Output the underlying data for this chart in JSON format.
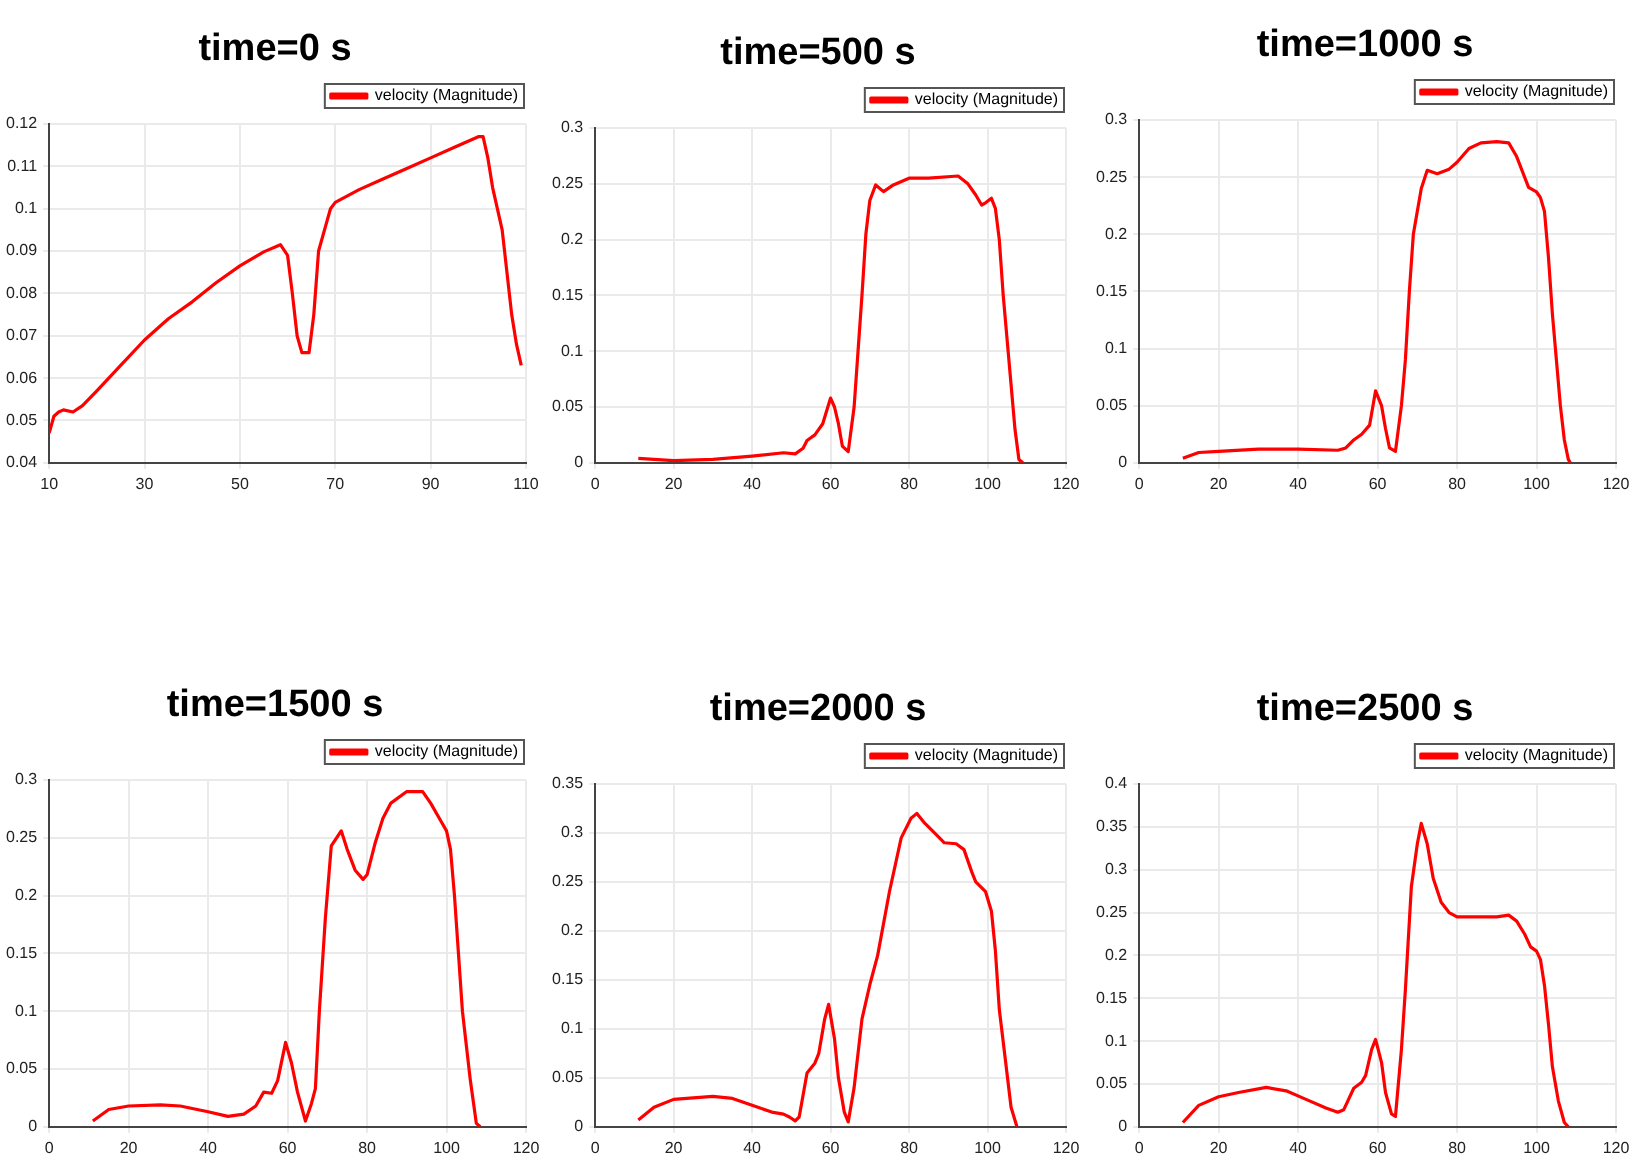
{
  "chart_data": [
    {
      "type": "line",
      "title": "time=0 s",
      "xlim": [
        10,
        110
      ],
      "xticks": [
        10,
        30,
        50,
        70,
        90,
        110
      ],
      "ylim": [
        0.04,
        0.12
      ],
      "yticks": [
        0.04,
        0.05,
        0.06,
        0.07,
        0.08,
        0.09,
        0.1,
        0.11,
        0.12
      ],
      "grid": true,
      "legend": "top right",
      "x": [
        10,
        11,
        12,
        13,
        15,
        17,
        20,
        25,
        30,
        35,
        40,
        45,
        50,
        55,
        58.5,
        60,
        61,
        62,
        63,
        64.5,
        65.5,
        66.5,
        68,
        69,
        70,
        75,
        80,
        85,
        90,
        95,
        100,
        101,
        102,
        103,
        105,
        107,
        108,
        109
      ],
      "series": [
        {
          "name": "velocity (Magnitude)",
          "color": "#ff0000",
          "values": [
            0.047,
            0.051,
            0.052,
            0.0525,
            0.052,
            0.0535,
            0.057,
            0.063,
            0.069,
            0.074,
            0.078,
            0.0825,
            0.0865,
            0.0898,
            0.0915,
            0.089,
            0.08,
            0.07,
            0.066,
            0.066,
            0.075,
            0.09,
            0.096,
            0.1,
            0.1015,
            0.1045,
            0.107,
            0.1095,
            0.112,
            0.1145,
            0.117,
            0.117,
            0.112,
            0.105,
            0.095,
            0.075,
            0.068,
            0.063
          ]
        }
      ]
    },
    {
      "type": "line",
      "title": "time=500 s",
      "xlim": [
        0,
        120
      ],
      "xticks": [
        0,
        20,
        40,
        60,
        80,
        100,
        120
      ],
      "ylim": [
        0,
        0.3
      ],
      "yticks": [
        0,
        0.05,
        0.1,
        0.15,
        0.2,
        0.25,
        0.3
      ],
      "grid": true,
      "legend": "top right",
      "x": [
        11,
        15,
        20,
        30,
        40,
        48,
        51,
        53,
        54,
        56,
        58,
        60,
        61,
        62,
        63,
        64.5,
        66,
        67,
        68,
        69,
        70,
        71.5,
        73.5,
        76,
        80,
        85,
        92.5,
        95,
        97,
        98.5,
        99.5,
        101,
        102,
        103,
        104,
        106,
        107,
        108,
        109
      ],
      "series": [
        {
          "name": "velocity (Magnitude)",
          "color": "#ff0000",
          "values": [
            0.004,
            0.003,
            0.002,
            0.003,
            0.006,
            0.009,
            0.008,
            0.013,
            0.02,
            0.025,
            0.035,
            0.058,
            0.05,
            0.035,
            0.015,
            0.01,
            0.05,
            0.1,
            0.15,
            0.205,
            0.235,
            0.249,
            0.243,
            0.249,
            0.255,
            0.255,
            0.257,
            0.25,
            0.24,
            0.231,
            0.233,
            0.237,
            0.228,
            0.2,
            0.15,
            0.07,
            0.03,
            0.003,
            0
          ]
        }
      ]
    },
    {
      "type": "line",
      "title": "time=1000 s",
      "xlim": [
        0,
        120
      ],
      "xticks": [
        0,
        20,
        40,
        60,
        80,
        100,
        120
      ],
      "ylim": [
        0,
        0.3
      ],
      "yticks": [
        0,
        0.05,
        0.1,
        0.15,
        0.2,
        0.25,
        0.3
      ],
      "grid": true,
      "legend": "top right",
      "x": [
        11,
        15,
        20,
        30,
        40,
        50,
        52,
        54,
        56,
        58,
        59.5,
        61,
        62,
        63,
        64.5,
        66,
        67,
        68,
        69,
        71,
        72.5,
        75,
        78,
        80,
        83,
        86,
        90,
        93,
        95,
        97,
        98,
        100,
        101,
        102,
        103,
        104,
        105,
        106,
        107,
        108,
        108.5
      ],
      "series": [
        {
          "name": "velocity (Magnitude)",
          "color": "#ff0000",
          "values": [
            0.004,
            0.009,
            0.01,
            0.012,
            0.012,
            0.011,
            0.013,
            0.02,
            0.025,
            0.033,
            0.063,
            0.05,
            0.03,
            0.013,
            0.01,
            0.05,
            0.09,
            0.15,
            0.2,
            0.24,
            0.256,
            0.253,
            0.257,
            0.263,
            0.275,
            0.28,
            0.281,
            0.28,
            0.268,
            0.25,
            0.241,
            0.237,
            0.232,
            0.22,
            0.18,
            0.13,
            0.09,
            0.05,
            0.02,
            0.003,
            0
          ]
        }
      ]
    },
    {
      "type": "line",
      "title": "time=1500 s",
      "xlim": [
        0,
        120
      ],
      "xticks": [
        0,
        20,
        40,
        60,
        80,
        100,
        120
      ],
      "ylim": [
        0,
        0.3
      ],
      "yticks": [
        0,
        0.05,
        0.1,
        0.15,
        0.2,
        0.25,
        0.3
      ],
      "grid": true,
      "legend": "top right",
      "x": [
        11,
        15,
        20,
        28,
        33,
        40,
        45,
        49,
        52,
        54,
        56,
        57.5,
        59.5,
        61,
        62.5,
        64.5,
        66,
        67,
        68,
        69.5,
        71,
        73.5,
        75,
        77,
        79,
        80,
        82,
        84,
        86,
        90,
        94,
        96,
        98,
        100,
        101,
        102,
        103,
        104,
        106,
        107.5,
        108.5
      ],
      "series": [
        {
          "name": "velocity (Magnitude)",
          "color": "#ff0000",
          "values": [
            0.005,
            0.015,
            0.018,
            0.019,
            0.018,
            0.013,
            0.009,
            0.011,
            0.018,
            0.03,
            0.029,
            0.04,
            0.073,
            0.055,
            0.03,
            0.005,
            0.02,
            0.033,
            0.1,
            0.18,
            0.243,
            0.256,
            0.24,
            0.222,
            0.214,
            0.218,
            0.245,
            0.267,
            0.28,
            0.29,
            0.29,
            0.28,
            0.268,
            0.256,
            0.24,
            0.2,
            0.15,
            0.1,
            0.04,
            0.003,
            0
          ]
        }
      ]
    },
    {
      "type": "line",
      "title": "time=2000 s",
      "xlim": [
        0,
        120
      ],
      "xticks": [
        0,
        20,
        40,
        60,
        80,
        100,
        120
      ],
      "ylim": [
        0,
        0.35
      ],
      "yticks": [
        0,
        0.05,
        0.1,
        0.15,
        0.2,
        0.25,
        0.3,
        0.35
      ],
      "grid": true,
      "legend": "top right",
      "x": [
        11,
        15,
        20,
        30,
        35,
        40,
        45,
        48,
        49.5,
        51,
        52,
        54,
        56,
        57,
        58.5,
        59.5,
        61,
        62,
        63.5,
        64.5,
        66,
        68,
        70,
        72,
        75,
        78,
        80.5,
        82,
        84,
        87,
        89,
        92,
        94,
        96,
        97,
        99.5,
        101,
        102,
        103,
        104.5,
        106,
        107.5
      ],
      "series": [
        {
          "name": "velocity (Magnitude)",
          "color": "#ff0000",
          "values": [
            0.007,
            0.02,
            0.028,
            0.031,
            0.029,
            0.022,
            0.015,
            0.013,
            0.01,
            0.006,
            0.01,
            0.055,
            0.065,
            0.075,
            0.11,
            0.125,
            0.09,
            0.05,
            0.015,
            0.005,
            0.04,
            0.11,
            0.145,
            0.175,
            0.24,
            0.295,
            0.315,
            0.32,
            0.31,
            0.298,
            0.29,
            0.289,
            0.283,
            0.26,
            0.25,
            0.24,
            0.22,
            0.18,
            0.12,
            0.07,
            0.02,
            0
          ]
        }
      ]
    },
    {
      "type": "line",
      "title": "time=2500 s",
      "xlim": [
        0,
        120
      ],
      "xticks": [
        0,
        20,
        40,
        60,
        80,
        100,
        120
      ],
      "ylim": [
        0,
        0.4
      ],
      "yticks": [
        0,
        0.05,
        0.1,
        0.15,
        0.2,
        0.25,
        0.3,
        0.35,
        0.4
      ],
      "grid": true,
      "legend": "top right",
      "x": [
        11,
        15,
        20,
        25,
        32,
        37,
        42,
        47,
        50,
        51.5,
        54,
        56,
        57,
        58.5,
        59.5,
        61,
        62,
        63.5,
        64.5,
        66,
        67,
        68.5,
        70,
        71,
        72.5,
        74,
        76,
        78,
        80,
        85,
        90,
        93,
        95,
        97,
        98.5,
        100,
        101,
        102,
        103,
        104,
        105.5,
        107,
        108
      ],
      "series": [
        {
          "name": "velocity (Magnitude)",
          "color": "#ff0000",
          "values": [
            0.005,
            0.025,
            0.035,
            0.04,
            0.046,
            0.042,
            0.032,
            0.022,
            0.017,
            0.02,
            0.045,
            0.052,
            0.06,
            0.09,
            0.102,
            0.075,
            0.04,
            0.015,
            0.012,
            0.09,
            0.16,
            0.28,
            0.33,
            0.354,
            0.33,
            0.29,
            0.262,
            0.25,
            0.245,
            0.245,
            0.245,
            0.247,
            0.24,
            0.225,
            0.21,
            0.205,
            0.195,
            0.165,
            0.12,
            0.07,
            0.03,
            0.005,
            0
          ]
        }
      ]
    }
  ]
}
